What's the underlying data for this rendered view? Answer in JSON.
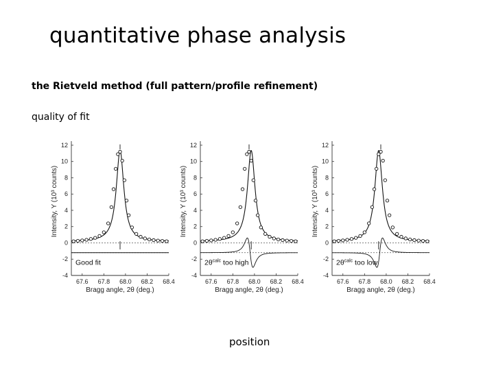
{
  "slide": {
    "title": "quantitative phase analysis",
    "subtitle": "the Rietveld method (full pattern/profile refinement)",
    "section_label": "quality of fit",
    "bottom_label": "position"
  },
  "chart_data": [
    {
      "type": "scatter",
      "title": "",
      "xlabel": "Bragg angle, 2θ (deg.)",
      "ylabel": "Intensity, Y (10³ counts)",
      "annotation": "Good fit",
      "xlim": [
        67.5,
        68.4
      ],
      "ylim": [
        -4,
        12.5
      ],
      "xticks": [
        "67.6",
        "67.8",
        "68.0",
        "68.2",
        "68.4"
      ],
      "yticks": [
        "-4",
        "-2",
        "0",
        "2",
        "4",
        "6",
        "8",
        "10",
        "12"
      ],
      "peak_position_observed": 67.95,
      "peak_position_calculated": 67.95,
      "peak_height": 11.2,
      "difference_offset": -1.2,
      "observed": {
        "x": [
          67.52,
          67.56,
          67.6,
          67.64,
          67.68,
          67.72,
          67.76,
          67.8,
          67.84,
          67.87,
          67.89,
          67.91,
          67.93,
          67.95,
          67.97,
          67.99,
          68.01,
          68.03,
          68.06,
          68.1,
          68.14,
          68.18,
          68.22,
          68.26,
          68.3,
          68.34,
          68.38
        ],
        "y": [
          0.2,
          0.25,
          0.3,
          0.38,
          0.48,
          0.62,
          0.85,
          1.3,
          2.4,
          4.4,
          6.6,
          9.1,
          10.9,
          11.2,
          10.1,
          7.7,
          5.2,
          3.4,
          1.9,
          1.1,
          0.75,
          0.55,
          0.42,
          0.34,
          0.28,
          0.24,
          0.2
        ]
      },
      "calculated": {
        "peak": 11.2,
        "center": 67.95,
        "fwhm": 0.085
      }
    },
    {
      "type": "scatter",
      "title": "",
      "xlabel": "Bragg angle, 2θ (deg.)",
      "ylabel": "Intensity, Y (10³ counts)",
      "annotation": "2θcalc too high",
      "xlim": [
        67.5,
        68.4
      ],
      "ylim": [
        -4,
        12.5
      ],
      "xticks": [
        "67.6",
        "67.8",
        "68.0",
        "68.2",
        "68.4"
      ],
      "yticks": [
        "-4",
        "-2",
        "0",
        "2",
        "4",
        "6",
        "8",
        "10",
        "12"
      ],
      "peak_position_observed": 67.95,
      "peak_position_calculated": 67.97,
      "peak_height": 11.2,
      "difference_offset": -1.2,
      "observed": {
        "x": [
          67.52,
          67.56,
          67.6,
          67.64,
          67.68,
          67.72,
          67.76,
          67.8,
          67.84,
          67.87,
          67.89,
          67.91,
          67.93,
          67.95,
          67.97,
          67.99,
          68.01,
          68.03,
          68.06,
          68.1,
          68.14,
          68.18,
          68.22,
          68.26,
          68.3,
          68.34,
          68.38
        ],
        "y": [
          0.2,
          0.25,
          0.3,
          0.38,
          0.48,
          0.62,
          0.85,
          1.3,
          2.4,
          4.4,
          6.6,
          9.1,
          10.9,
          11.2,
          10.1,
          7.7,
          5.2,
          3.4,
          1.9,
          1.1,
          0.75,
          0.55,
          0.42,
          0.34,
          0.28,
          0.24,
          0.2
        ]
      },
      "calculated": {
        "peak": 11.2,
        "center": 67.97,
        "fwhm": 0.085
      }
    },
    {
      "type": "scatter",
      "title": "",
      "xlabel": "Bragg angle, 2θ (deg.)",
      "ylabel": "Intensity, Y (10³ counts)",
      "annotation": "2θcalc too low",
      "xlim": [
        67.5,
        68.4
      ],
      "ylim": [
        -4,
        12.5
      ],
      "xticks": [
        "67.6",
        "67.8",
        "68.0",
        "68.2",
        "68.4"
      ],
      "yticks": [
        "-4",
        "-2",
        "0",
        "2",
        "4",
        "6",
        "8",
        "10",
        "12"
      ],
      "peak_position_observed": 67.95,
      "peak_position_calculated": 67.93,
      "peak_height": 11.2,
      "difference_offset": -1.2,
      "observed": {
        "x": [
          67.52,
          67.56,
          67.6,
          67.64,
          67.68,
          67.72,
          67.76,
          67.8,
          67.84,
          67.87,
          67.89,
          67.91,
          67.93,
          67.95,
          67.97,
          67.99,
          68.01,
          68.03,
          68.06,
          68.1,
          68.14,
          68.18,
          68.22,
          68.26,
          68.3,
          68.34,
          68.38
        ],
        "y": [
          0.2,
          0.25,
          0.3,
          0.38,
          0.48,
          0.62,
          0.85,
          1.3,
          2.4,
          4.4,
          6.6,
          9.1,
          10.9,
          11.2,
          10.1,
          7.7,
          5.2,
          3.4,
          1.9,
          1.1,
          0.75,
          0.55,
          0.42,
          0.34,
          0.28,
          0.24,
          0.2
        ]
      },
      "calculated": {
        "peak": 11.2,
        "center": 67.93,
        "fwhm": 0.085
      }
    }
  ]
}
